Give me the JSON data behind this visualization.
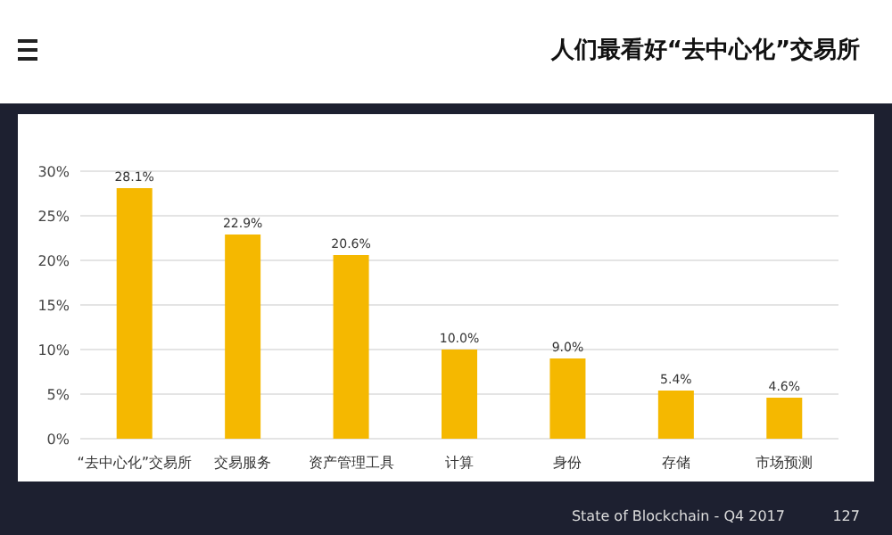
{
  "chart_data": {
    "type": "bar",
    "title": "人们最看好“去中心化”交易所",
    "categories": [
      "“去中心化”交易所",
      "交易服务",
      "资产管理工具",
      "计算",
      "身份",
      "存储",
      "市场预测"
    ],
    "values": [
      28.1,
      22.9,
      20.6,
      10.0,
      9.0,
      5.4,
      4.6
    ],
    "value_labels": [
      "28.1%",
      "22.9%",
      "20.6%",
      "10.0%",
      "9.0%",
      "5.4%",
      "4.6%"
    ],
    "color": "#f5b800",
    "ylim": [
      0,
      30
    ],
    "yticks": [
      {
        "value": 0,
        "label": "0%"
      },
      {
        "value": 5,
        "label": "5%"
      },
      {
        "value": 10,
        "label": "10%"
      },
      {
        "value": 15,
        "label": "15%"
      },
      {
        "value": 20,
        "label": "20%"
      },
      {
        "value": 25,
        "label": "25%"
      },
      {
        "value": 30,
        "label": "30%"
      }
    ],
    "grid": "y",
    "annotations": [
      "State of Blockchain - Q4 2017",
      "127"
    ]
  }
}
